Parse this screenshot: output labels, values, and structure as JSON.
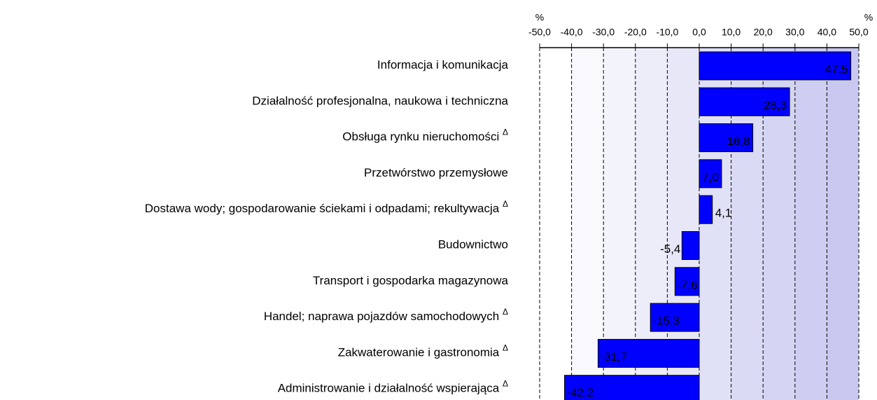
{
  "chart_data": {
    "type": "barh",
    "axis_labels": [
      "%",
      "%"
    ],
    "categories": [
      "Informacja i komunikacja",
      "Działalność profesjonalna, naukowa i techniczna",
      "Obsługa rynku nieruchomości",
      "Przetwórstwo przemysłowe",
      "Dostawa wody; gospodarowanie ściekami i odpadami; rekultywacja",
      "Budownictwo",
      "Transport i gospodarka magazynowa",
      "Handel; naprawa pojazdów samochodowych",
      "Zakwaterowanie i gastronomia",
      "Administrowanie i działalność wspierająca"
    ],
    "markers": [
      null,
      null,
      "Δ",
      null,
      "Δ",
      null,
      null,
      "Δ",
      "Δ",
      "Δ"
    ],
    "values": [
      47.5,
      28.3,
      16.8,
      7.0,
      4.1,
      -5.4,
      -7.6,
      -15.3,
      -31.7,
      -42.2
    ],
    "value_labels": [
      "47,5",
      "28,3",
      "16,8",
      "7,0",
      "4,1",
      "-5,4",
      "-7,6",
      "-15,3",
      "-31,7",
      "-42,2"
    ],
    "color": "#0000ff",
    "xlim": [
      -50,
      50
    ],
    "xticks": [
      {
        "value": -50,
        "label": "-50,0"
      },
      {
        "value": -40,
        "label": "-40,0"
      },
      {
        "value": -30,
        "label": "-30,0"
      },
      {
        "value": -20,
        "label": "-20,0"
      },
      {
        "value": -10,
        "label": "-10,0"
      },
      {
        "value": 0,
        "label": "0,0"
      },
      {
        "value": 10,
        "label": "10,0"
      },
      {
        "value": 20,
        "label": "20,0"
      },
      {
        "value": 30,
        "label": "30,0"
      },
      {
        "value": 40,
        "label": "40,0"
      },
      {
        "value": 50,
        "label": "50,0"
      }
    ],
    "grid": true
  }
}
